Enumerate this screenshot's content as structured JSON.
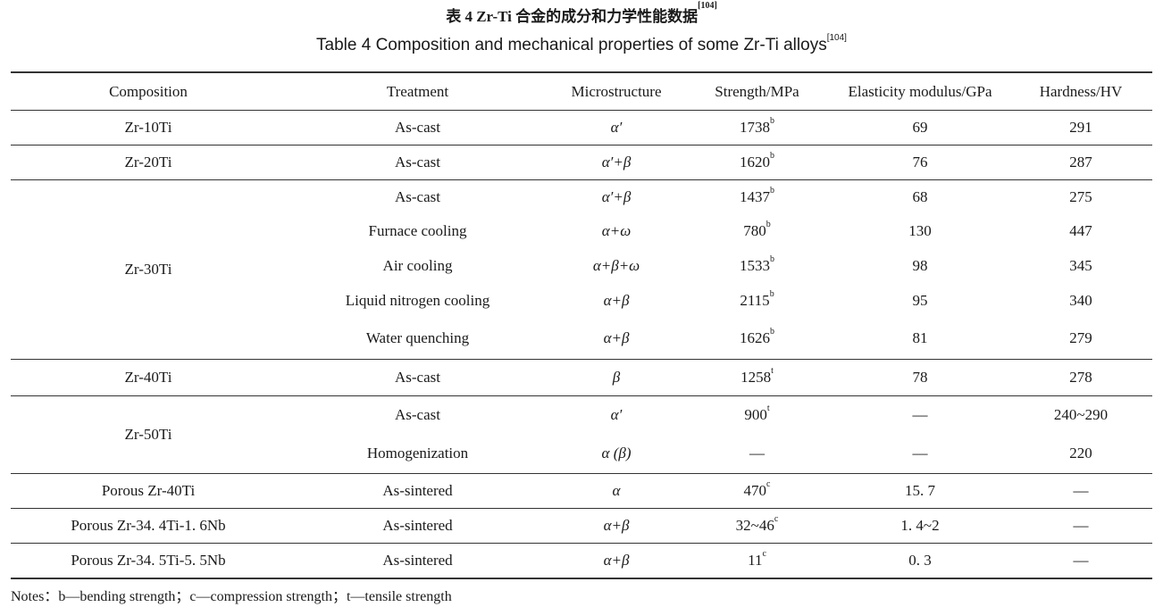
{
  "title_cn": "表 4  Zr-Ti 合金的成分和力学性能数据",
  "title_en": "Table 4   Composition and mechanical properties of some Zr-Ti alloys",
  "reference": "[104]",
  "headers": [
    "Composition",
    "Treatment",
    "Microstructure",
    "Strength/MPa",
    "Elasticity modulus/GPa",
    "Hardness/HV"
  ],
  "groups": [
    {
      "composition": "Zr-10Ti",
      "rows": [
        {
          "treatment": "As-cast",
          "micro": "α′",
          "strength": "1738",
          "note": "b",
          "modulus": "69",
          "hardness": "291"
        }
      ]
    },
    {
      "composition": "Zr-20Ti",
      "rows": [
        {
          "treatment": "As-cast",
          "micro": "α′+β",
          "strength": "1620",
          "note": "b",
          "modulus": "76",
          "hardness": "287"
        }
      ]
    },
    {
      "composition": "Zr-30Ti",
      "rows": [
        {
          "treatment": "As-cast",
          "micro": "α′+β",
          "strength": "1437",
          "note": "b",
          "modulus": "68",
          "hardness": "275"
        },
        {
          "treatment": "Furnace cooling",
          "micro": "α+ω",
          "strength": "780",
          "note": "b",
          "modulus": "130",
          "hardness": "447"
        },
        {
          "treatment": "Air cooling",
          "micro": "α+β+ω",
          "strength": "1533",
          "note": "b",
          "modulus": "98",
          "hardness": "345"
        },
        {
          "treatment": "Liquid nitrogen cooling",
          "micro": "α+β",
          "strength": "2115",
          "note": "b",
          "modulus": "95",
          "hardness": "340"
        },
        {
          "treatment": "Water quenching",
          "micro": "α+β",
          "strength": "1626",
          "note": "b",
          "modulus": "81",
          "hardness": "279"
        }
      ]
    },
    {
      "composition": "Zr-40Ti",
      "rows": [
        {
          "treatment": "As-cast",
          "micro": "β",
          "strength": "1258",
          "note": "t",
          "modulus": "78",
          "hardness": "278"
        }
      ]
    },
    {
      "composition": "Zr-50Ti",
      "rows": [
        {
          "treatment": "As-cast",
          "micro": "α′",
          "strength": "900",
          "note": "t",
          "modulus": "—",
          "hardness": "240~290"
        },
        {
          "treatment": "Homogenization",
          "micro": "α (β)",
          "strength": "—",
          "note": "",
          "modulus": "—",
          "hardness": "220"
        }
      ]
    },
    {
      "composition": "Porous Zr-40Ti",
      "rows": [
        {
          "treatment": "As-sintered",
          "micro": "α",
          "strength": "470",
          "note": "c",
          "modulus": "15. 7",
          "hardness": "—"
        }
      ]
    },
    {
      "composition": "Porous Zr-34. 4Ti-1. 6Nb",
      "rows": [
        {
          "treatment": "As-sintered",
          "micro": "α+β",
          "strength": "32~46",
          "note": "c",
          "modulus": "1. 4~2",
          "hardness": "—"
        }
      ]
    },
    {
      "composition": "Porous Zr-34. 5Ti-5. 5Nb",
      "rows": [
        {
          "treatment": "As-sintered",
          "micro": "α+β",
          "strength": "11",
          "note": "c",
          "modulus": "0. 3",
          "hardness": "—"
        }
      ]
    }
  ],
  "notes": "Notes：b—bending strength；c—compression strength；t—tensile strength"
}
